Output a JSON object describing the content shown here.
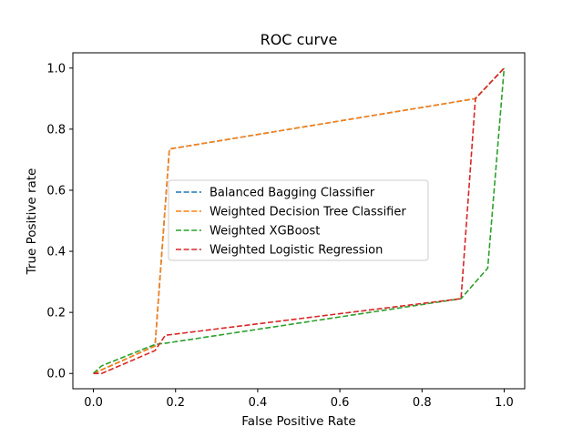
{
  "chart_data": {
    "type": "line",
    "title": "ROC curve",
    "xlabel": "False Positive Rate",
    "ylabel": "True Positive rate",
    "xlim": [
      -0.05,
      1.05
    ],
    "ylim": [
      -0.05,
      1.05
    ],
    "xticks": [
      0.0,
      0.2,
      0.4,
      0.6,
      0.8,
      1.0
    ],
    "yticks": [
      0.0,
      0.2,
      0.4,
      0.6,
      0.8,
      1.0
    ],
    "xtick_labels": [
      "0.0",
      "0.2",
      "0.4",
      "0.6",
      "0.8",
      "1.0"
    ],
    "ytick_labels": [
      "0.0",
      "0.2",
      "0.4",
      "0.6",
      "0.8",
      "1.0"
    ],
    "grid": false,
    "legend_position": "center",
    "line_style": "dashed",
    "series": [
      {
        "name": "Balanced Bagging Classifier",
        "color": "#1f77b4",
        "x": [
          0.0,
          0.15,
          0.185,
          0.93,
          1.0
        ],
        "y": [
          0.0,
          0.09,
          0.735,
          0.9,
          1.0
        ]
      },
      {
        "name": "Weighted Decision Tree Classifier",
        "color": "#ff7f0e",
        "x": [
          0.0,
          0.15,
          0.185,
          0.93,
          1.0
        ],
        "y": [
          0.0,
          0.09,
          0.735,
          0.9,
          1.0
        ]
      },
      {
        "name": "Weighted XGBoost",
        "color": "#2ca02c",
        "x": [
          0.0,
          0.02,
          0.15,
          0.18,
          0.895,
          0.96,
          1.0
        ],
        "y": [
          0.0,
          0.025,
          0.095,
          0.1,
          0.245,
          0.345,
          1.0
        ]
      },
      {
        "name": "Weighted Logistic Regression",
        "color": "#d62728",
        "x": [
          0.0,
          0.02,
          0.15,
          0.175,
          0.895,
          0.93,
          1.0
        ],
        "y": [
          0.0,
          0.0,
          0.075,
          0.125,
          0.245,
          0.9,
          1.0
        ]
      }
    ]
  }
}
